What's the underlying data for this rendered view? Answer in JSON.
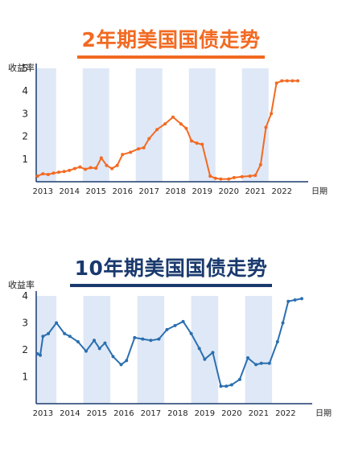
{
  "chart_data": [
    {
      "type": "line",
      "title": "2年期美国国债走势",
      "ylabel": "收益率",
      "xlabel": "日期",
      "color": "#f26a22",
      "ylim": [
        0,
        5
      ],
      "yticks": [
        1,
        2,
        3,
        4,
        5
      ],
      "xticks": [
        "2013",
        "2014",
        "2015",
        "2016",
        "2017",
        "2018",
        "2019",
        "2020",
        "2021",
        "2022"
      ],
      "xlim": [
        2012.75,
        2022.75
      ],
      "grid": "alternating vertical bands",
      "series": [
        {
          "x": [
            2012.8,
            2013.0,
            2013.2,
            2013.4,
            2013.6,
            2013.8,
            2014.0,
            2014.2,
            2014.4,
            2014.6,
            2014.8,
            2015.0,
            2015.2,
            2015.4,
            2015.6,
            2015.8,
            2016.0,
            2016.3,
            2016.6,
            2016.8,
            2017.0,
            2017.3,
            2017.6,
            2017.9,
            2018.2,
            2018.4,
            2018.6,
            2018.8,
            2019.0,
            2019.3,
            2019.5,
            2019.7,
            2020.0,
            2020.2,
            2020.5,
            2020.8,
            2021.0,
            2021.2,
            2021.4,
            2021.6,
            2021.8,
            2022.0,
            2022.2,
            2022.4,
            2022.6
          ],
          "values": [
            0.25,
            0.35,
            0.32,
            0.38,
            0.42,
            0.45,
            0.5,
            0.58,
            0.65,
            0.55,
            0.62,
            0.6,
            1.05,
            0.72,
            0.58,
            0.72,
            1.2,
            1.3,
            1.45,
            1.5,
            1.9,
            2.3,
            2.55,
            2.85,
            2.55,
            2.35,
            1.8,
            1.7,
            1.65,
            0.25,
            0.15,
            0.12,
            0.12,
            0.18,
            0.22,
            0.25,
            0.28,
            0.75,
            2.4,
            3.0,
            4.35,
            4.45,
            4.45,
            4.45,
            4.45
          ]
        }
      ]
    },
    {
      "type": "line",
      "title": "10年期美国国债走势",
      "ylabel": "收益率",
      "xlabel": "日期",
      "color": "#2a6fb0",
      "ylim": [
        0,
        4
      ],
      "yticks": [
        1,
        2,
        3,
        4
      ],
      "xticks": [
        "2013",
        "2014",
        "2015",
        "2016",
        "2017",
        "2018",
        "2019",
        "2020",
        "2021",
        "2022"
      ],
      "xlim": [
        2012.75,
        2022.75
      ],
      "grid": "alternating vertical bands",
      "series": [
        {
          "x": [
            2012.8,
            2012.9,
            2013.0,
            2013.2,
            2013.5,
            2013.8,
            2014.0,
            2014.3,
            2014.6,
            2014.9,
            2015.1,
            2015.3,
            2015.6,
            2015.9,
            2016.1,
            2016.4,
            2016.7,
            2017.0,
            2017.3,
            2017.6,
            2017.9,
            2018.2,
            2018.5,
            2018.8,
            2019.0,
            2019.3,
            2019.6,
            2019.8,
            2020.0,
            2020.3,
            2020.6,
            2020.9,
            2021.1,
            2021.4,
            2021.7,
            2021.9,
            2022.1,
            2022.35,
            2022.6
          ],
          "values": [
            1.85,
            1.8,
            2.5,
            2.6,
            3.0,
            2.6,
            2.5,
            2.3,
            1.95,
            2.35,
            2.05,
            2.25,
            1.75,
            1.45,
            1.6,
            2.45,
            2.4,
            2.35,
            2.4,
            2.75,
            2.9,
            3.05,
            2.6,
            2.05,
            1.65,
            1.9,
            0.65,
            0.65,
            0.7,
            0.9,
            1.7,
            1.45,
            1.5,
            1.5,
            2.3,
            3.0,
            3.8,
            3.85,
            3.9
          ]
        }
      ]
    }
  ]
}
